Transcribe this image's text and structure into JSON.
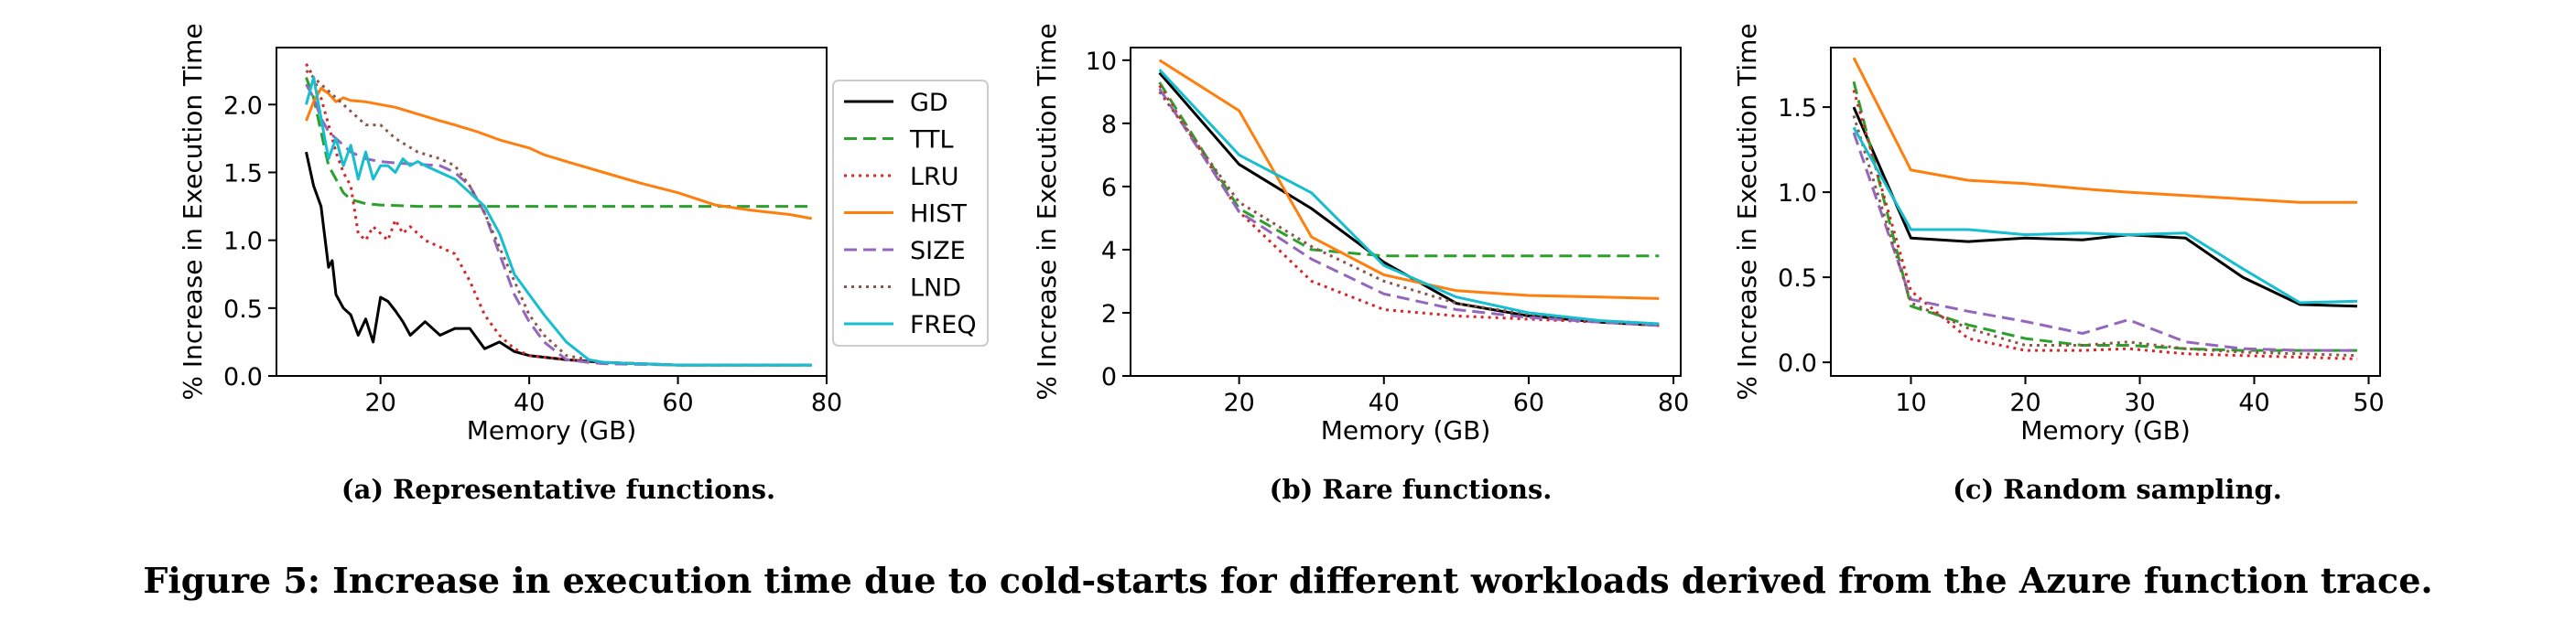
{
  "figure_caption": "Figure 5: Increase in execution time due to cold-starts for different workloads derived from the Azure function trace.",
  "chart_data": [
    {
      "type": "line",
      "caption": "(a)  Representative functions.",
      "xlabel": "Memory (GB)",
      "ylabel": "% Increase in Execution Time",
      "xlim": [
        6,
        80
      ],
      "ylim": [
        0,
        2.42
      ],
      "xticks": [
        "20",
        "40",
        "60",
        "80"
      ],
      "yticks": [
        "0.0",
        "0.5",
        "1.0",
        "1.5",
        "2.0"
      ],
      "legend": "outside-right",
      "grid": false,
      "series": [
        {
          "name": "GD",
          "color": "#000000",
          "dash": "solid",
          "x": [
            10,
            11,
            12,
            13,
            13.5,
            14,
            15,
            16,
            17,
            18,
            19,
            20,
            21,
            22,
            23,
            24,
            25,
            26,
            28,
            30,
            32,
            34,
            36,
            38,
            40,
            45,
            50,
            60,
            70,
            78
          ],
          "y": [
            1.65,
            1.4,
            1.25,
            0.8,
            0.85,
            0.6,
            0.5,
            0.45,
            0.3,
            0.42,
            0.25,
            0.58,
            0.55,
            0.48,
            0.4,
            0.3,
            0.35,
            0.4,
            0.3,
            0.35,
            0.35,
            0.2,
            0.25,
            0.18,
            0.15,
            0.12,
            0.1,
            0.08,
            0.08,
            0.08
          ]
        },
        {
          "name": "TTL",
          "color": "#2ca02c",
          "dash": "dashed",
          "x": [
            10,
            11,
            12,
            13,
            14,
            15,
            16,
            18,
            20,
            25,
            30,
            40,
            50,
            60,
            70,
            78
          ],
          "y": [
            2.2,
            2.05,
            1.8,
            1.55,
            1.45,
            1.35,
            1.3,
            1.27,
            1.26,
            1.25,
            1.25,
            1.25,
            1.25,
            1.25,
            1.25,
            1.25
          ]
        },
        {
          "name": "LRU",
          "color": "#d62728",
          "dash": "dotted",
          "x": [
            10,
            11,
            12,
            13,
            14,
            15,
            16,
            17,
            18,
            19,
            20,
            21,
            22,
            23,
            24,
            25,
            26,
            28,
            30,
            32,
            34,
            36,
            38,
            40,
            45,
            50,
            60,
            70,
            78
          ],
          "y": [
            2.3,
            2.2,
            2.05,
            1.85,
            1.65,
            1.5,
            1.4,
            1.05,
            1.0,
            1.1,
            1.05,
            1.0,
            1.15,
            1.05,
            1.1,
            1.05,
            1.0,
            0.95,
            0.9,
            0.7,
            0.45,
            0.3,
            0.2,
            0.15,
            0.12,
            0.1,
            0.08,
            0.08,
            0.08
          ]
        },
        {
          "name": "HIST",
          "color": "#ff7f0e",
          "dash": "solid",
          "x": [
            10,
            11,
            12,
            13,
            14,
            15,
            16,
            18,
            20,
            22,
            25,
            28,
            30,
            33,
            36,
            40,
            42,
            45,
            50,
            55,
            60,
            65,
            70,
            75,
            78
          ],
          "y": [
            1.88,
            2.02,
            2.12,
            2.08,
            2.02,
            2.05,
            2.03,
            2.02,
            2.0,
            1.98,
            1.93,
            1.88,
            1.85,
            1.8,
            1.74,
            1.68,
            1.63,
            1.58,
            1.5,
            1.42,
            1.35,
            1.26,
            1.22,
            1.19,
            1.16
          ]
        },
        {
          "name": "SIZE",
          "color": "#9467bd",
          "dash": "dashed",
          "x": [
            10,
            11,
            12,
            13,
            14,
            15,
            16,
            18,
            20,
            22,
            25,
            28,
            30,
            32,
            34,
            36,
            38,
            40,
            42,
            45,
            48,
            50,
            60,
            70,
            78
          ],
          "y": [
            2.15,
            2.05,
            1.9,
            1.8,
            1.75,
            1.7,
            1.65,
            1.6,
            1.58,
            1.57,
            1.56,
            1.55,
            1.5,
            1.4,
            1.2,
            0.9,
            0.6,
            0.4,
            0.25,
            0.12,
            0.1,
            0.09,
            0.08,
            0.08,
            0.08
          ]
        },
        {
          "name": "LND",
          "color": "#8c564b",
          "dash": "dotted",
          "x": [
            10,
            11,
            12,
            13,
            14,
            15,
            16,
            18,
            20,
            22,
            25,
            28,
            30,
            32,
            34,
            36,
            38,
            40,
            42,
            45,
            48,
            50,
            60,
            70,
            78
          ],
          "y": [
            2.25,
            2.2,
            2.15,
            2.1,
            2.05,
            2.0,
            1.95,
            1.85,
            1.85,
            1.75,
            1.65,
            1.6,
            1.55,
            1.4,
            1.2,
            0.95,
            0.7,
            0.45,
            0.3,
            0.15,
            0.12,
            0.1,
            0.08,
            0.08,
            0.08
          ]
        },
        {
          "name": "FREQ",
          "color": "#17becf",
          "dash": "solid",
          "x": [
            10,
            11,
            12,
            13,
            14,
            15,
            16,
            17,
            18,
            19,
            20,
            21,
            22,
            23,
            24,
            25,
            26,
            28,
            30,
            32,
            34,
            36,
            38,
            40,
            42,
            45,
            48,
            50,
            60,
            70,
            78
          ],
          "y": [
            2.0,
            2.2,
            1.9,
            1.6,
            1.75,
            1.55,
            1.7,
            1.45,
            1.65,
            1.45,
            1.55,
            1.55,
            1.5,
            1.6,
            1.55,
            1.58,
            1.55,
            1.5,
            1.45,
            1.35,
            1.25,
            1.05,
            0.75,
            0.6,
            0.45,
            0.25,
            0.12,
            0.1,
            0.08,
            0.08,
            0.08
          ]
        }
      ]
    },
    {
      "type": "line",
      "caption": "(b) Rare functions.",
      "xlabel": "Memory (GB)",
      "ylabel": "% Increase in Execution Time",
      "xlim": [
        5,
        81
      ],
      "ylim": [
        0,
        10.4
      ],
      "xticks": [
        "20",
        "40",
        "60",
        "80"
      ],
      "yticks": [
        "0",
        "2",
        "4",
        "6",
        "8",
        "10"
      ],
      "grid": false,
      "series": [
        {
          "name": "GD",
          "color": "#000000",
          "dash": "solid",
          "x": [
            9,
            20,
            30,
            40,
            50,
            60,
            70,
            78
          ],
          "y": [
            9.6,
            6.7,
            5.3,
            3.6,
            2.3,
            1.9,
            1.7,
            1.6
          ]
        },
        {
          "name": "TTL",
          "color": "#2ca02c",
          "dash": "dashed",
          "x": [
            9,
            20,
            30,
            40,
            50,
            60,
            70,
            78
          ],
          "y": [
            9.3,
            5.3,
            4.0,
            3.8,
            3.8,
            3.8,
            3.8,
            3.8
          ]
        },
        {
          "name": "LRU",
          "color": "#d62728",
          "dash": "dotted",
          "x": [
            9,
            20,
            30,
            40,
            50,
            60,
            70,
            78
          ],
          "y": [
            9.2,
            5.2,
            3.0,
            2.1,
            1.9,
            1.8,
            1.7,
            1.6
          ]
        },
        {
          "name": "HIST",
          "color": "#ff7f0e",
          "dash": "solid",
          "x": [
            9,
            20,
            30,
            40,
            50,
            60,
            70,
            78
          ],
          "y": [
            10.0,
            8.4,
            4.4,
            3.2,
            2.7,
            2.55,
            2.5,
            2.45
          ]
        },
        {
          "name": "SIZE",
          "color": "#9467bd",
          "dash": "dashed",
          "x": [
            9,
            20,
            30,
            40,
            50,
            60,
            70,
            78
          ],
          "y": [
            9.1,
            5.2,
            3.7,
            2.6,
            2.1,
            1.85,
            1.7,
            1.6
          ]
        },
        {
          "name": "LND",
          "color": "#8c564b",
          "dash": "dotted",
          "x": [
            9,
            20,
            30,
            40,
            50,
            60,
            70,
            78
          ],
          "y": [
            9.0,
            5.5,
            4.1,
            3.0,
            2.3,
            1.95,
            1.75,
            1.65
          ]
        },
        {
          "name": "FREQ",
          "color": "#17becf",
          "dash": "solid",
          "x": [
            9,
            20,
            30,
            40,
            50,
            60,
            70,
            78
          ],
          "y": [
            9.7,
            7.0,
            5.8,
            3.5,
            2.5,
            2.0,
            1.75,
            1.65
          ]
        }
      ]
    },
    {
      "type": "line",
      "caption": "(c) Random sampling.",
      "xlabel": "Memory (GB)",
      "ylabel": "% Increase in Execution Time",
      "xlim": [
        3,
        51
      ],
      "ylim": [
        -0.08,
        1.85
      ],
      "xticks": [
        "10",
        "20",
        "30",
        "40",
        "50"
      ],
      "yticks": [
        "0.0",
        "0.5",
        "1.0",
        "1.5"
      ],
      "grid": false,
      "series": [
        {
          "name": "GD",
          "color": "#000000",
          "dash": "solid",
          "x": [
            5,
            10,
            15,
            20,
            25,
            29,
            34,
            39,
            44,
            49
          ],
          "y": [
            1.5,
            0.73,
            0.71,
            0.73,
            0.72,
            0.75,
            0.73,
            0.5,
            0.34,
            0.33
          ]
        },
        {
          "name": "TTL",
          "color": "#2ca02c",
          "dash": "dashed",
          "x": [
            5,
            10,
            15,
            20,
            25,
            29,
            34,
            39,
            44,
            49
          ],
          "y": [
            1.65,
            0.33,
            0.22,
            0.14,
            0.1,
            0.1,
            0.08,
            0.07,
            0.07,
            0.07
          ]
        },
        {
          "name": "LRU",
          "color": "#d62728",
          "dash": "dotted",
          "x": [
            5,
            10,
            15,
            20,
            25,
            29,
            34,
            39,
            44,
            49
          ],
          "y": [
            1.6,
            0.42,
            0.14,
            0.07,
            0.07,
            0.08,
            0.05,
            0.04,
            0.03,
            0.02
          ]
        },
        {
          "name": "HIST",
          "color": "#ff7f0e",
          "dash": "solid",
          "x": [
            5,
            10,
            15,
            20,
            25,
            29,
            34,
            39,
            44,
            49
          ],
          "y": [
            1.79,
            1.13,
            1.07,
            1.05,
            1.02,
            1.0,
            0.98,
            0.96,
            0.94,
            0.94
          ]
        },
        {
          "name": "SIZE",
          "color": "#9467bd",
          "dash": "dashed",
          "x": [
            5,
            10,
            15,
            20,
            25,
            29,
            34,
            39,
            44,
            49
          ],
          "y": [
            1.35,
            0.37,
            0.3,
            0.24,
            0.17,
            0.25,
            0.12,
            0.08,
            0.07,
            0.07
          ]
        },
        {
          "name": "LND",
          "color": "#8c564b",
          "dash": "dotted",
          "x": [
            5,
            10,
            15,
            20,
            25,
            29,
            34,
            39,
            44,
            49
          ],
          "y": [
            1.45,
            0.35,
            0.2,
            0.1,
            0.1,
            0.12,
            0.08,
            0.06,
            0.05,
            0.04
          ]
        },
        {
          "name": "FREQ",
          "color": "#17becf",
          "dash": "solid",
          "x": [
            5,
            10,
            15,
            20,
            25,
            29,
            34,
            39,
            44,
            49
          ],
          "y": [
            1.38,
            0.78,
            0.78,
            0.75,
            0.76,
            0.75,
            0.76,
            0.55,
            0.35,
            0.36
          ]
        }
      ]
    }
  ]
}
